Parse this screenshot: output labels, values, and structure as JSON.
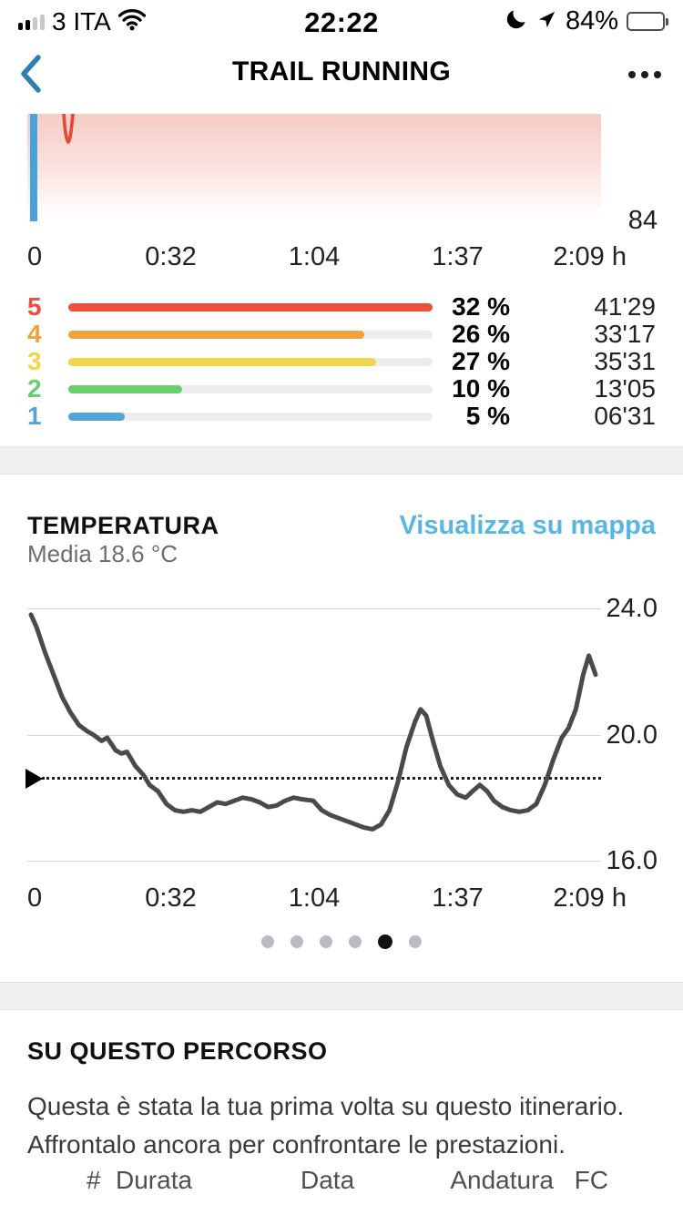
{
  "status_bar": {
    "carrier": "3 ITA",
    "time": "22:22",
    "battery_percent_label": "84%",
    "battery_level": 84
  },
  "header": {
    "title": "TRAIL RUNNING"
  },
  "hr_section": {
    "axis_right_label": "84",
    "x_ticks": [
      "0",
      "0:32",
      "1:04",
      "1:37",
      "2:09 h"
    ]
  },
  "zone_chart": {
    "scale_max_percent": 32,
    "rows": [
      {
        "zone": "5",
        "percent": 32,
        "percent_label": "32 %",
        "duration": "41'29",
        "color": "#ee4f3b"
      },
      {
        "zone": "4",
        "percent": 26,
        "percent_label": "26 %",
        "duration": "33'17",
        "color": "#f0a23c"
      },
      {
        "zone": "3",
        "percent": 27,
        "percent_label": "27 %",
        "duration": "35'31",
        "color": "#f3d44e"
      },
      {
        "zone": "2",
        "percent": 10,
        "percent_label": "10 %",
        "duration": "13'05",
        "color": "#67d06c"
      },
      {
        "zone": "1",
        "percent": 5,
        "percent_label": "5 %",
        "duration": "06'31",
        "color": "#55a4d9"
      }
    ]
  },
  "temperature_section": {
    "title": "TEMPERATURA",
    "subtitle": "Media 18.6 °C",
    "map_link": "Visualizza su mappa"
  },
  "chart_data": {
    "type": "line",
    "title": "TEMPERATURA",
    "ylabel": "°C",
    "ylim": [
      16,
      24
    ],
    "yticks": [
      "24.0",
      "20.0",
      "16.0"
    ],
    "x_ticks": [
      "0",
      "0:32",
      "1:04",
      "1:37",
      "2:09 h"
    ],
    "average": 18.6,
    "grid": true,
    "series": [
      {
        "name": "temperature",
        "x_fraction": [
          0.0,
          0.01,
          0.025,
          0.04,
          0.055,
          0.07,
          0.085,
          0.1,
          0.11,
          0.125,
          0.135,
          0.15,
          0.16,
          0.17,
          0.185,
          0.2,
          0.21,
          0.225,
          0.24,
          0.255,
          0.27,
          0.285,
          0.3,
          0.315,
          0.33,
          0.345,
          0.36,
          0.375,
          0.39,
          0.405,
          0.42,
          0.435,
          0.45,
          0.465,
          0.48,
          0.5,
          0.515,
          0.53,
          0.545,
          0.56,
          0.575,
          0.59,
          0.605,
          0.62,
          0.635,
          0.65,
          0.665,
          0.68,
          0.69,
          0.7,
          0.712,
          0.725,
          0.74,
          0.755,
          0.77,
          0.782,
          0.795,
          0.808,
          0.82,
          0.835,
          0.85,
          0.865,
          0.88,
          0.895,
          0.91,
          0.925,
          0.94,
          0.952,
          0.965,
          0.978,
          0.988,
          1.0
        ],
        "values": [
          23.8,
          23.4,
          22.6,
          21.9,
          21.2,
          20.7,
          20.3,
          20.1,
          20.0,
          19.8,
          19.9,
          19.5,
          19.4,
          19.45,
          19.0,
          18.7,
          18.4,
          18.2,
          17.8,
          17.6,
          17.55,
          17.6,
          17.55,
          17.7,
          17.85,
          17.8,
          17.9,
          18.0,
          17.95,
          17.85,
          17.7,
          17.75,
          17.9,
          18.0,
          17.95,
          17.9,
          17.6,
          17.45,
          17.35,
          17.25,
          17.15,
          17.05,
          17.0,
          17.15,
          17.6,
          18.5,
          19.6,
          20.4,
          20.8,
          20.6,
          19.8,
          19.0,
          18.4,
          18.1,
          18.0,
          18.2,
          18.4,
          18.2,
          17.9,
          17.7,
          17.6,
          17.55,
          17.6,
          17.8,
          18.4,
          19.2,
          19.9,
          20.2,
          20.8,
          21.9,
          22.5,
          21.9
        ]
      }
    ]
  },
  "pager": {
    "count": 6,
    "active_index": 4
  },
  "route_section": {
    "title": "SU QUESTO PERCORSO",
    "description_lines": [
      "Questa è stata la tua prima volta su questo itinerario.",
      "Affrontalo ancora per confrontare le prestazioni."
    ],
    "table_headers": [
      "#",
      "Durata",
      "Data",
      "Andatura",
      "FC"
    ]
  }
}
